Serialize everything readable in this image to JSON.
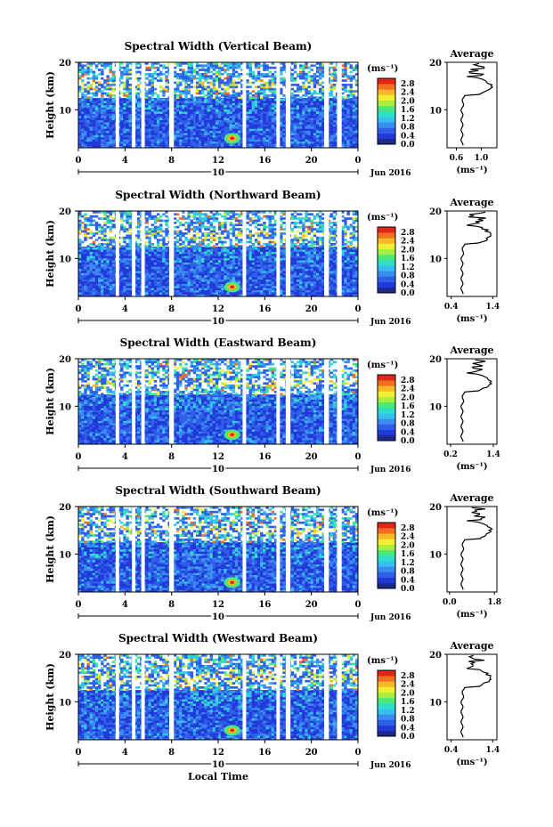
{
  "chart_data": [
    {
      "type": "heatmap",
      "title": "Spectral Width (Vertical Beam)",
      "ylabel": "Height (km)",
      "yticks": [
        "20",
        "10"
      ],
      "xticks": [
        "0",
        "4",
        "8",
        "12",
        "16",
        "20",
        "0"
      ],
      "ylim": [
        2,
        20
      ],
      "xlim": [
        0,
        24
      ],
      "day_label": "10",
      "date_label": "Jun 2016",
      "colorbar": {
        "unit": "(ms⁻¹)",
        "ticks": [
          "2.8",
          "2.4",
          "2.0",
          "1.6",
          "1.2",
          "0.8",
          "0.4",
          "0.0"
        ]
      },
      "profile": {
        "title": "Average",
        "xlabel": "(ms⁻¹)",
        "xticks": [
          "0.6",
          "1.0"
        ],
        "xlim": [
          0.45,
          1.25
        ],
        "yticks": [
          "20",
          "10"
        ]
      },
      "colors": {
        "background": "#2f5fe8"
      }
    },
    {
      "type": "heatmap",
      "title": "Spectral Width (Northward Beam)",
      "ylabel": "Height (km)",
      "yticks": [
        "20",
        "10"
      ],
      "xticks": [
        "0",
        "4",
        "8",
        "12",
        "16",
        "20",
        "0"
      ],
      "ylim": [
        2,
        20
      ],
      "xlim": [
        0,
        24
      ],
      "day_label": "10",
      "date_label": "Jun 2016",
      "colorbar": {
        "unit": "(ms⁻¹)",
        "ticks": [
          "2.8",
          "2.4",
          "2.0",
          "1.6",
          "1.2",
          "0.8",
          "0.4",
          "0.0"
        ]
      },
      "profile": {
        "title": "Average",
        "xlabel": "(ms⁻¹)",
        "xticks": [
          "0.4",
          "1.4"
        ],
        "xlim": [
          0.3,
          1.5
        ],
        "yticks": [
          "20",
          "10"
        ]
      },
      "colors": {
        "background": "#2f5fe8"
      }
    },
    {
      "type": "heatmap",
      "title": "Spectral Width (Eastward Beam)",
      "ylabel": "Height (km)",
      "yticks": [
        "20",
        "10"
      ],
      "xticks": [
        "0",
        "4",
        "8",
        "12",
        "16",
        "20",
        "0"
      ],
      "ylim": [
        2,
        20
      ],
      "xlim": [
        0,
        24
      ],
      "day_label": "10",
      "date_label": "Jun 2016",
      "colorbar": {
        "unit": "(ms⁻¹)",
        "ticks": [
          "2.8",
          "2.4",
          "2.0",
          "1.6",
          "1.2",
          "0.8",
          "0.4",
          "0.0"
        ]
      },
      "profile": {
        "title": "Average",
        "xlabel": "(ms⁻¹)",
        "xticks": [
          "0.2",
          "1.4"
        ],
        "xlim": [
          0.1,
          1.5
        ],
        "yticks": [
          "20",
          "10"
        ]
      },
      "colors": {
        "background": "#2f5fe8"
      }
    },
    {
      "type": "heatmap",
      "title": "Spectral Width (Southward Beam)",
      "ylabel": "Height (km)",
      "yticks": [
        "20",
        "10"
      ],
      "xticks": [
        "0",
        "4",
        "8",
        "12",
        "16",
        "20",
        "0"
      ],
      "ylim": [
        2,
        20
      ],
      "xlim": [
        0,
        24
      ],
      "day_label": "10",
      "date_label": "Jun 2016",
      "colorbar": {
        "unit": "(ms⁻¹)",
        "ticks": [
          "2.8",
          "2.4",
          "2.0",
          "1.6",
          "1.2",
          "0.8",
          "0.4",
          "0.0"
        ]
      },
      "profile": {
        "title": "Average",
        "xlabel": "(ms⁻¹)",
        "xticks": [
          "0.0",
          "1.8"
        ],
        "xlim": [
          -0.1,
          1.9
        ],
        "yticks": [
          "20",
          "10"
        ]
      },
      "colors": {
        "background": "#2f5fe8"
      }
    },
    {
      "type": "heatmap",
      "title": "Spectral Width (Westward Beam)",
      "ylabel": "Height (km)",
      "yticks": [
        "20",
        "10"
      ],
      "xticks": [
        "0",
        "4",
        "8",
        "12",
        "16",
        "20",
        "0"
      ],
      "ylim": [
        2,
        20
      ],
      "xlim": [
        0,
        24
      ],
      "day_label": "10",
      "date_label": "Jun 2016",
      "xlabel": "Local Time",
      "colorbar": {
        "unit": "(ms⁻¹)",
        "ticks": [
          "2.8",
          "2.4",
          "2.0",
          "1.6",
          "1.2",
          "0.8",
          "0.4",
          "0.0"
        ]
      },
      "profile": {
        "title": "Average",
        "xlabel": "(ms⁻¹)",
        "xticks": [
          "0.4",
          "1.4"
        ],
        "xlim": [
          0.3,
          1.5
        ],
        "yticks": [
          "20",
          "10"
        ]
      },
      "colors": {
        "background": "#2f5fe8"
      }
    }
  ],
  "colormap": [
    "#1c2a8c",
    "#2238d8",
    "#2f5fe8",
    "#3b8cf0",
    "#36c0f0",
    "#2fe0c8",
    "#4ce87a",
    "#a8f040",
    "#f0f030",
    "#f8b828",
    "#f07020",
    "#e02818"
  ],
  "data_gaps_hours": [
    [
      3.2,
      3.5
    ],
    [
      4.6,
      4.9
    ],
    [
      5.4,
      5.7
    ],
    [
      7.8,
      8.2
    ],
    [
      14.1,
      14.4
    ],
    [
      17.0,
      17.3
    ],
    [
      17.8,
      18.2
    ],
    [
      21.1,
      21.5
    ],
    [
      22.2,
      22.6
    ]
  ]
}
